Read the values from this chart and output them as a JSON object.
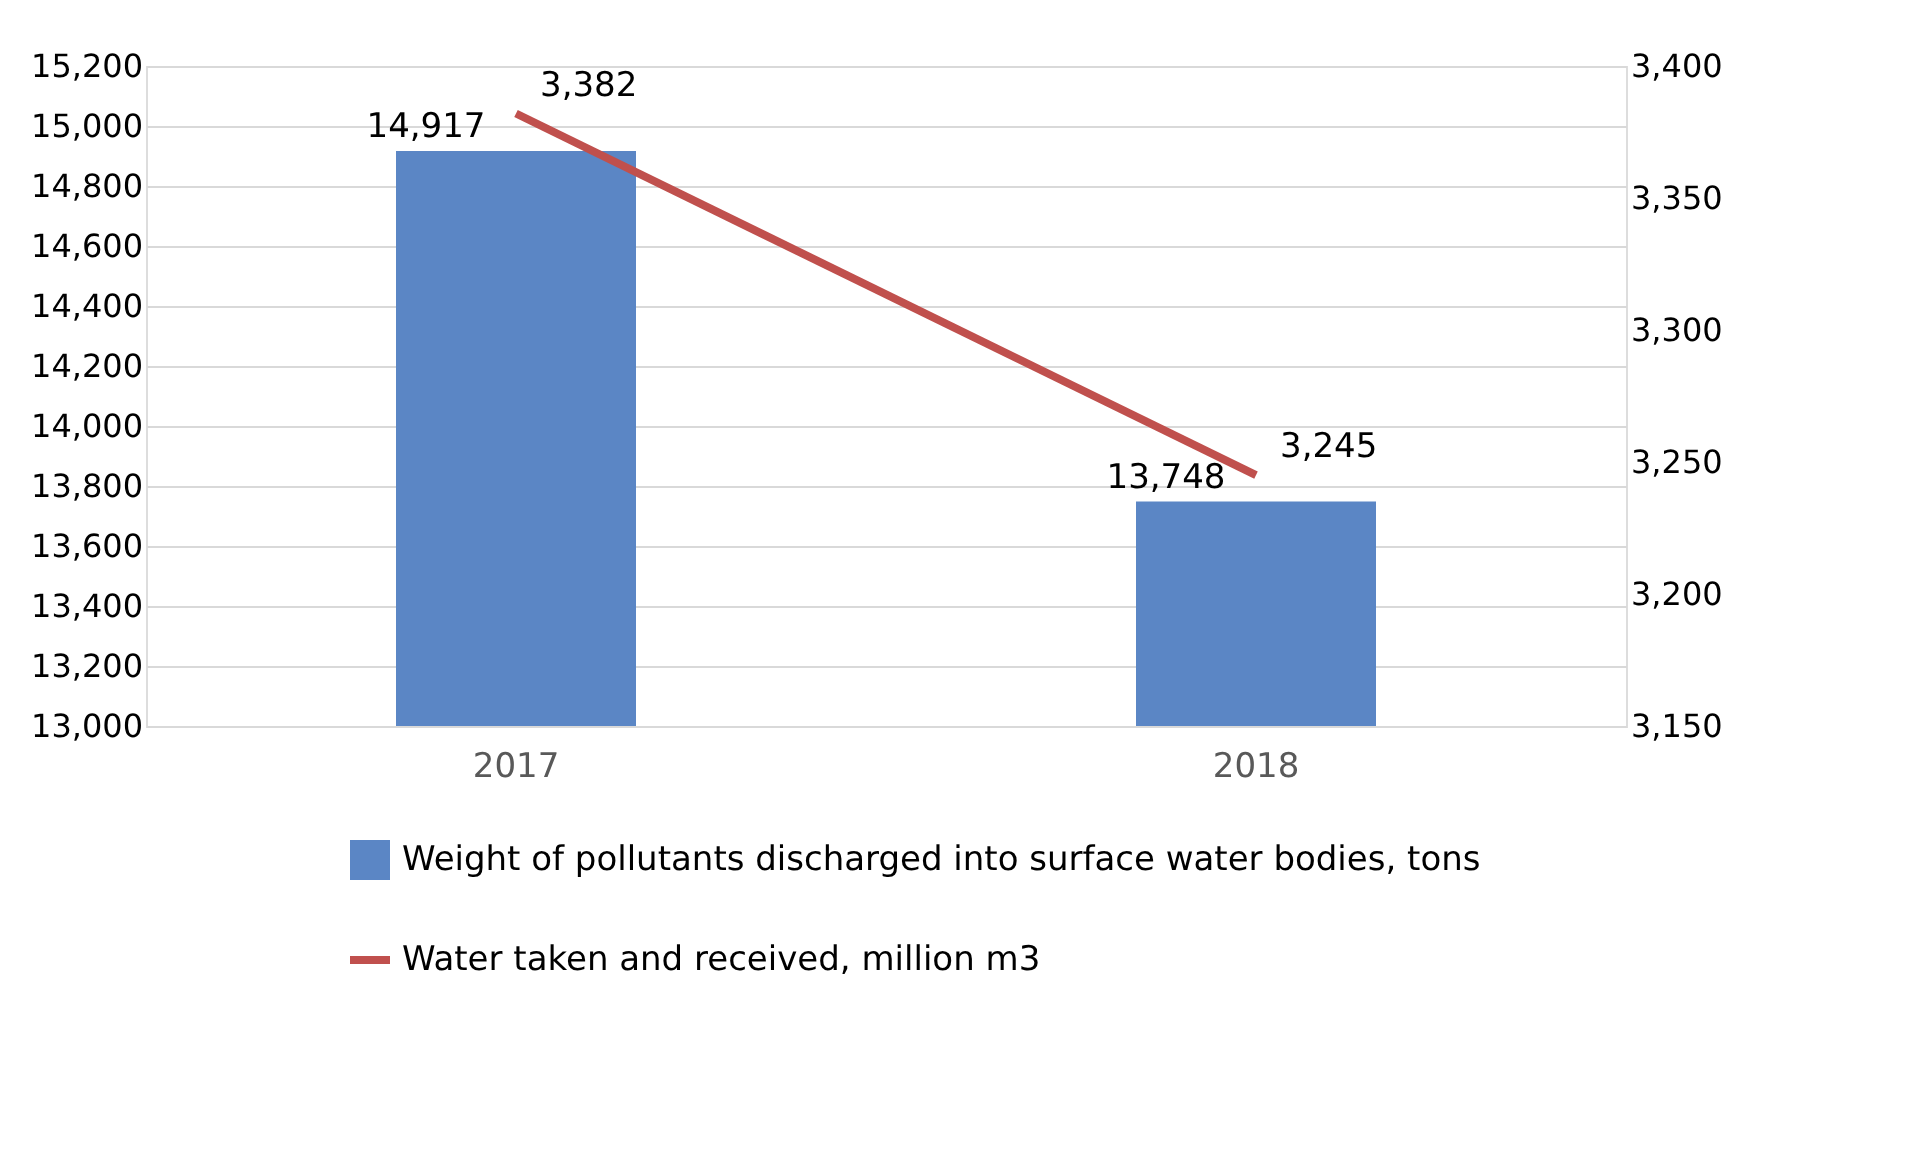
{
  "chart_data": {
    "type": "bar",
    "categories": [
      "2017",
      "2018"
    ],
    "series": [
      {
        "name": "Weight of pollutants discharged into surface water bodies, tons",
        "type": "bar",
        "color": "#5b86c5",
        "values": [
          14917,
          13748
        ],
        "value_labels": [
          "14,917",
          "13,748"
        ]
      },
      {
        "name": "Water taken and received, million m3",
        "type": "line",
        "axis": "y2",
        "color": "#c0504d",
        "values": [
          3382,
          3245
        ],
        "value_labels": [
          "3,382",
          "3,245"
        ]
      }
    ],
    "ylim": [
      13000,
      15200
    ],
    "yticks": [
      {
        "value": 13000,
        "label": "13,000"
      },
      {
        "value": 13200,
        "label": "13,200"
      },
      {
        "value": 13400,
        "label": "13,400"
      },
      {
        "value": 13600,
        "label": "13,600"
      },
      {
        "value": 13800,
        "label": "13,800"
      },
      {
        "value": 14000,
        "label": "14,000"
      },
      {
        "value": 14200,
        "label": "14,200"
      },
      {
        "value": 14400,
        "label": "14,400"
      },
      {
        "value": 14600,
        "label": "14,600"
      },
      {
        "value": 14800,
        "label": "14,800"
      },
      {
        "value": 15000,
        "label": "15,000"
      },
      {
        "value": 15200,
        "label": "15,200"
      }
    ],
    "y2lim": [
      3150,
      3400
    ],
    "y2ticks": [
      {
        "value": 3150,
        "label": "3,150"
      },
      {
        "value": 3200,
        "label": "3,200"
      },
      {
        "value": 3250,
        "label": "3,250"
      },
      {
        "value": 3300,
        "label": "3,300"
      },
      {
        "value": 3350,
        "label": "3,350"
      },
      {
        "value": 3400,
        "label": "3,400"
      }
    ],
    "grid": "y",
    "legend": "bottom",
    "marker": "none",
    "line_style": "solid"
  }
}
